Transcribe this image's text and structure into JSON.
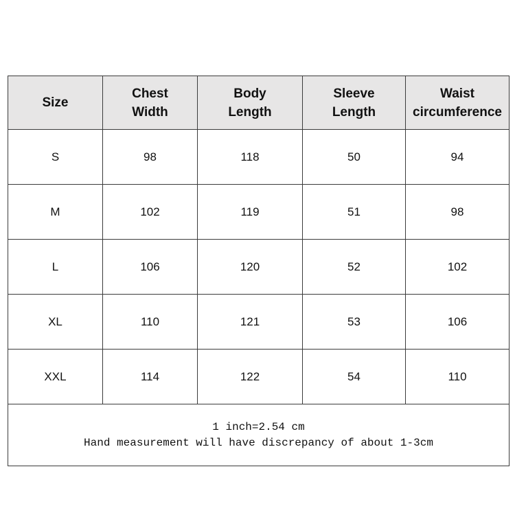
{
  "table": {
    "headers": [
      [
        "Size"
      ],
      [
        "Chest",
        "Width"
      ],
      [
        "Body",
        "Length"
      ],
      [
        "Sleeve",
        "Length"
      ],
      [
        "Waist",
        "circumference"
      ]
    ],
    "rows": [
      [
        "S",
        "98",
        "118",
        "50",
        "94"
      ],
      [
        "M",
        "102",
        "119",
        "51",
        "98"
      ],
      [
        "L",
        "106",
        "120",
        "52",
        "102"
      ],
      [
        "XL",
        "110",
        "121",
        "53",
        "106"
      ],
      [
        "XXL",
        "114",
        "122",
        "54",
        "110"
      ]
    ],
    "notes": [
      "1 inch=2.54 cm",
      "Hand measurement will have discrepancy of about 1-3cm"
    ]
  },
  "colors": {
    "header_bg": "#e7e6e6",
    "border": "#3a3a3a"
  }
}
